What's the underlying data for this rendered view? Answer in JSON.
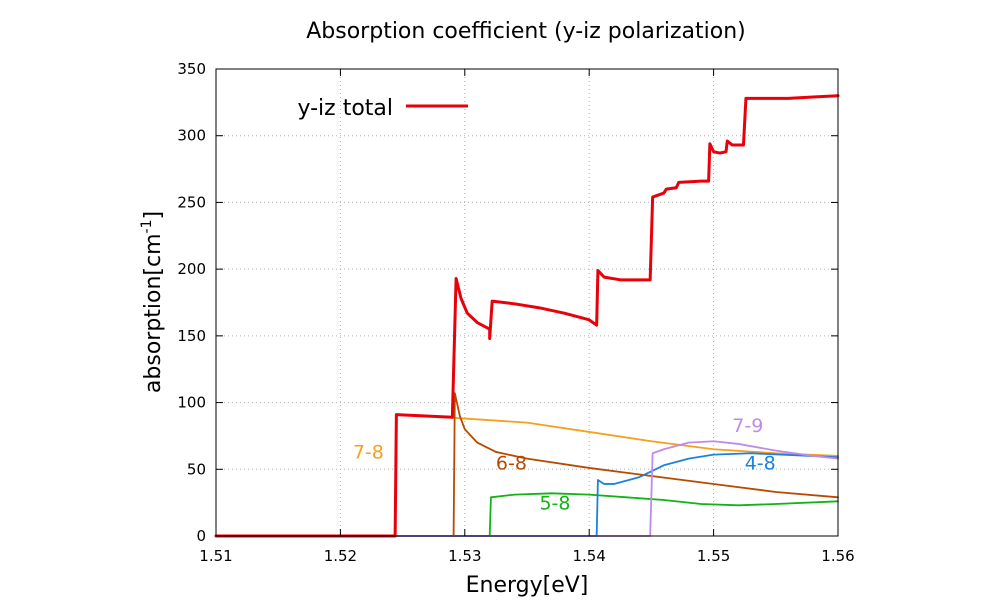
{
  "chart_data": {
    "type": "line",
    "title": "Absorption coefficient (y-iz polarization)",
    "xlabel": "Energy[eV]",
    "ylabel_main": "absorption[cm",
    "ylabel_sup": "-1",
    "ylabel_close": "]",
    "xlim": [
      1.51,
      1.56
    ],
    "ylim": [
      0,
      350
    ],
    "x_ticks": [
      "1.51",
      "1.52",
      "1.53",
      "1.54",
      "1.55",
      "1.56"
    ],
    "y_ticks": [
      "0",
      "50",
      "100",
      "150",
      "200",
      "250",
      "300",
      "350"
    ],
    "grid": true,
    "legend": {
      "position": "top-left",
      "entries": [
        {
          "label": "y-iz total",
          "color": "#e8000b"
        }
      ]
    },
    "series": [
      {
        "name": "y-iz total",
        "color": "#e8000b",
        "width": 3,
        "points": [
          [
            1.51,
            0
          ],
          [
            1.5244,
            0
          ],
          [
            1.5245,
            91
          ],
          [
            1.529,
            89
          ],
          [
            1.5293,
            193
          ],
          [
            1.5297,
            178
          ],
          [
            1.5302,
            167
          ],
          [
            1.531,
            160
          ],
          [
            1.532,
            155
          ],
          [
            1.532,
            148
          ],
          [
            1.5322,
            176
          ],
          [
            1.534,
            174
          ],
          [
            1.536,
            171
          ],
          [
            1.538,
            167
          ],
          [
            1.54,
            162
          ],
          [
            1.5406,
            158
          ],
          [
            1.5407,
            199
          ],
          [
            1.5412,
            194
          ],
          [
            1.5425,
            192
          ],
          [
            1.5449,
            192
          ],
          [
            1.5451,
            254
          ],
          [
            1.546,
            257
          ],
          [
            1.5462,
            260
          ],
          [
            1.547,
            261
          ],
          [
            1.5472,
            265
          ],
          [
            1.549,
            266
          ],
          [
            1.5496,
            266
          ],
          [
            1.5497,
            294
          ],
          [
            1.55,
            288
          ],
          [
            1.5505,
            287
          ],
          [
            1.551,
            288
          ],
          [
            1.5511,
            296
          ],
          [
            1.5515,
            293
          ],
          [
            1.5524,
            293
          ],
          [
            1.5526,
            328
          ],
          [
            1.556,
            328
          ],
          [
            1.558,
            329
          ],
          [
            1.56,
            330
          ]
        ]
      },
      {
        "name": "7-8",
        "color": "#f5a01e",
        "width": 1.8,
        "points": [
          [
            1.51,
            0
          ],
          [
            1.5244,
            0
          ],
          [
            1.5245,
            91
          ],
          [
            1.527,
            90
          ],
          [
            1.53,
            88
          ],
          [
            1.535,
            85
          ],
          [
            1.54,
            78
          ],
          [
            1.545,
            71
          ],
          [
            1.55,
            65
          ],
          [
            1.555,
            62
          ],
          [
            1.56,
            60
          ]
        ]
      },
      {
        "name": "6-8",
        "color": "#b84a00",
        "width": 1.8,
        "points": [
          [
            1.51,
            0
          ],
          [
            1.5291,
            0
          ],
          [
            1.5292,
            107
          ],
          [
            1.5296,
            90
          ],
          [
            1.53,
            80
          ],
          [
            1.531,
            70
          ],
          [
            1.5325,
            63
          ],
          [
            1.535,
            58
          ],
          [
            1.54,
            51
          ],
          [
            1.545,
            45
          ],
          [
            1.55,
            39
          ],
          [
            1.555,
            33
          ],
          [
            1.56,
            29
          ]
        ]
      },
      {
        "name": "5-8",
        "color": "#12b312",
        "width": 1.8,
        "points": [
          [
            1.51,
            0
          ],
          [
            1.532,
            0
          ],
          [
            1.5321,
            29
          ],
          [
            1.534,
            31
          ],
          [
            1.537,
            32
          ],
          [
            1.54,
            31
          ],
          [
            1.543,
            29
          ],
          [
            1.546,
            27
          ],
          [
            1.549,
            24
          ],
          [
            1.552,
            23
          ],
          [
            1.555,
            24
          ],
          [
            1.56,
            26
          ]
        ]
      },
      {
        "name": "4-8",
        "color": "#1a82e0",
        "width": 1.8,
        "points": [
          [
            1.51,
            0
          ],
          [
            1.5406,
            0
          ],
          [
            1.5407,
            42
          ],
          [
            1.5412,
            39
          ],
          [
            1.542,
            39
          ],
          [
            1.544,
            44
          ],
          [
            1.546,
            53
          ],
          [
            1.548,
            58
          ],
          [
            1.55,
            61
          ],
          [
            1.553,
            62
          ],
          [
            1.56,
            59
          ]
        ]
      },
      {
        "name": "7-9",
        "color": "#c08aea",
        "width": 1.8,
        "points": [
          [
            1.51,
            0
          ],
          [
            1.5449,
            0
          ],
          [
            1.5451,
            62
          ],
          [
            1.546,
            65
          ],
          [
            1.548,
            70
          ],
          [
            1.55,
            71
          ],
          [
            1.552,
            69
          ],
          [
            1.555,
            64
          ],
          [
            1.558,
            60
          ],
          [
            1.56,
            58
          ]
        ]
      }
    ],
    "annotations": [
      {
        "text": "7-8",
        "x": 1.521,
        "y": 58,
        "color": "#f5a01e"
      },
      {
        "text": "6-8",
        "x": 1.5325,
        "y": 50,
        "color": "#b84a00"
      },
      {
        "text": "5-8",
        "x": 1.536,
        "y": 20,
        "color": "#12b312"
      },
      {
        "text": "4-8",
        "x": 1.5525,
        "y": 50,
        "color": "#1a82e0"
      },
      {
        "text": "7-9",
        "x": 1.5515,
        "y": 78,
        "color": "#c08aea"
      }
    ]
  }
}
